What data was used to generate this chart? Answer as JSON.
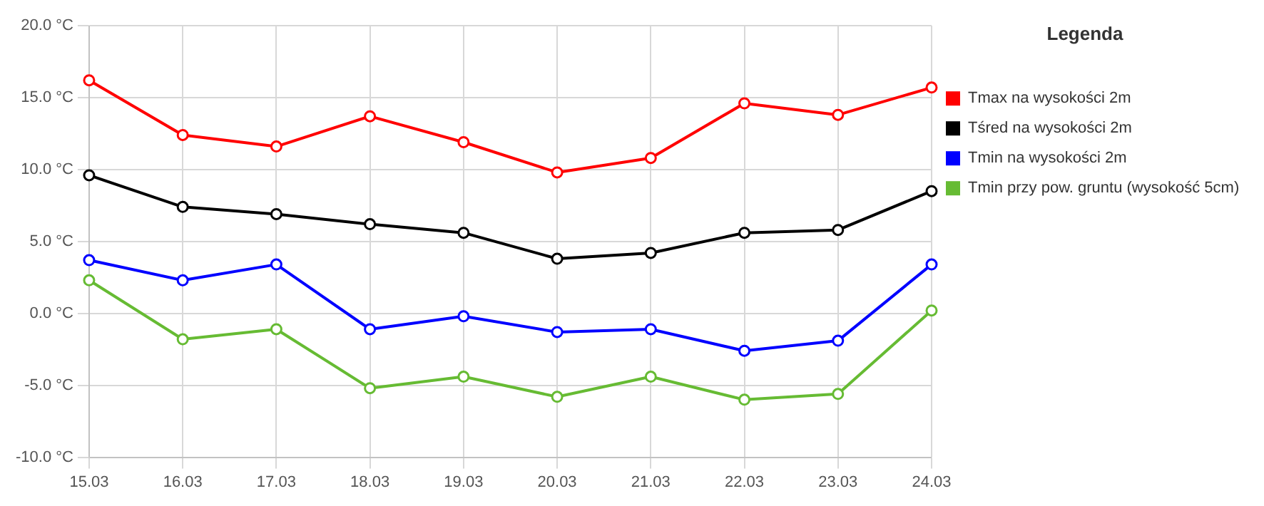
{
  "chart_data": {
    "type": "line",
    "legend_title": "Legenda",
    "legend": "right",
    "grid": true,
    "marker": "circle",
    "line_style": "solid",
    "categories": [
      "15.03",
      "16.03",
      "17.03",
      "18.03",
      "19.03",
      "20.03",
      "21.03",
      "22.03",
      "23.03",
      "24.03"
    ],
    "ylim": [
      -10,
      20
    ],
    "yticks": [
      {
        "value": -10,
        "label": "-10.0 °C"
      },
      {
        "value": -5,
        "label": "-5.0 °C"
      },
      {
        "value": 0,
        "label": "0.0 °C"
      },
      {
        "value": 5,
        "label": "5.0 °C"
      },
      {
        "value": 10,
        "label": "10.0 °C"
      },
      {
        "value": 15,
        "label": "15.0 °C"
      },
      {
        "value": 20,
        "label": "20.0 °C"
      }
    ],
    "series": [
      {
        "name": "Tmax na wysokości 2m",
        "color": "#ff0000",
        "values": [
          16.2,
          12.4,
          11.6,
          13.7,
          11.9,
          9.8,
          10.8,
          14.6,
          13.8,
          15.7
        ]
      },
      {
        "name": "Tśred na wysokości 2m",
        "color": "#000000",
        "values": [
          9.6,
          7.4,
          6.9,
          6.2,
          5.6,
          3.8,
          4.2,
          5.6,
          5.8,
          8.5
        ]
      },
      {
        "name": "Tmin na wysokości 2m",
        "color": "#0000ff",
        "values": [
          3.7,
          2.3,
          3.4,
          -1.1,
          -0.2,
          -1.3,
          -1.1,
          -2.6,
          -1.9,
          3.4
        ]
      },
      {
        "name": "Tmin przy pow. gruntu (wysokość 5cm)",
        "color": "#66bb33",
        "values": [
          2.3,
          -1.8,
          -1.1,
          -5.2,
          -4.4,
          -5.8,
          -4.4,
          -6.0,
          -5.6,
          0.2
        ]
      }
    ]
  }
}
